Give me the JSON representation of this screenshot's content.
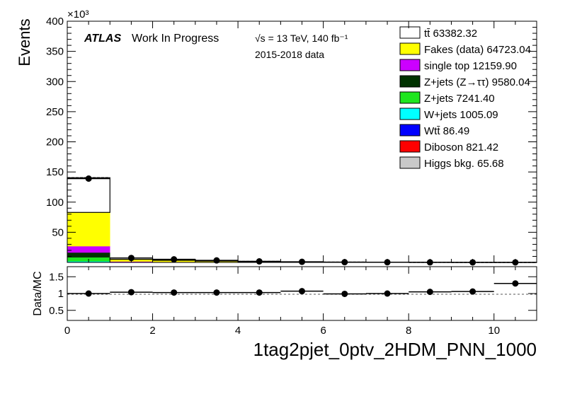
{
  "chart_data": {
    "type": "bar",
    "stacked": true,
    "ylabel": "Events",
    "y_exponent": "×10³",
    "ylim": [
      0,
      400000
    ],
    "xlim": [
      0,
      11
    ],
    "xlabel": "1tag2pjet_0ptv_2HDM_PNN_1000",
    "atlas_label": "ATLAS",
    "status_label": "Work In Progress",
    "energy_label": "√s = 13 TeV, 140 fb⁻¹",
    "data_label": "2015-2018 data",
    "y_ticks": [
      50,
      100,
      150,
      200,
      250,
      300,
      350,
      400
    ],
    "x_ticks": [
      0,
      2,
      4,
      6,
      8,
      10
    ],
    "bin_edges": [
      0,
      1,
      2,
      3,
      4,
      5,
      6,
      7,
      8,
      9,
      10,
      11
    ],
    "series": [
      {
        "name": "Higgs bkg. 65.68",
        "color": "#c8c8c8",
        "values": [
          60,
          1,
          1,
          1,
          1,
          0,
          0,
          0,
          0,
          0,
          0
        ]
      },
      {
        "name": "Diboson 821.42",
        "color": "#ff0000",
        "values": [
          800,
          5,
          4,
          3,
          3,
          2,
          1,
          1,
          1,
          0,
          0
        ]
      },
      {
        "name": "Wtt̄ 86.49",
        "color": "#0000ff",
        "values": [
          80,
          2,
          1,
          1,
          1,
          0,
          0,
          0,
          0,
          0,
          0
        ]
      },
      {
        "name": "W+jets 1005.09",
        "color": "#00ffff",
        "values": [
          1000,
          3,
          1,
          1,
          0,
          0,
          0,
          0,
          0,
          0,
          0
        ]
      },
      {
        "name": "Z+jets 7241.40",
        "color": "#1ee61e",
        "values": [
          6500,
          300,
          200,
          150,
          80,
          50,
          30,
          20,
          10,
          5,
          2
        ]
      },
      {
        "name": "Z+jets (Z→ττ) 9580.04",
        "color": "#003200",
        "values": [
          8000,
          600,
          400,
          300,
          150,
          80,
          50,
          30,
          15,
          8,
          3
        ]
      },
      {
        "name": "single top 12159.90",
        "color": "#cc00ff",
        "values": [
          10500,
          700,
          400,
          250,
          150,
          80,
          40,
          20,
          10,
          5,
          2
        ]
      },
      {
        "name": "Fakes (data) 64723.04",
        "color": "#ffff00",
        "values": [
          56000,
          3500,
          2500,
          1500,
          700,
          300,
          120,
          60,
          30,
          10,
          5
        ]
      },
      {
        "name": "tt̄ 63382.32",
        "color": "#ffffff",
        "values": [
          57500,
          2200,
          1500,
          1000,
          600,
          350,
          200,
          100,
          50,
          20,
          8
        ]
      }
    ],
    "data_points": {
      "name": "Data",
      "values": [
        139000,
        7400,
        5100,
        3300,
        1750,
        990,
        400,
        231,
        125,
        53,
        21
      ]
    },
    "ratio": {
      "ylabel": "Data/MC",
      "ylim": [
        0.2,
        1.8
      ],
      "y_ticks": [
        0.5,
        1,
        1.5
      ],
      "values": [
        1.0,
        1.04,
        1.03,
        1.03,
        1.03,
        1.07,
        0.99,
        1.0,
        1.05,
        1.06,
        1.3
      ]
    }
  }
}
